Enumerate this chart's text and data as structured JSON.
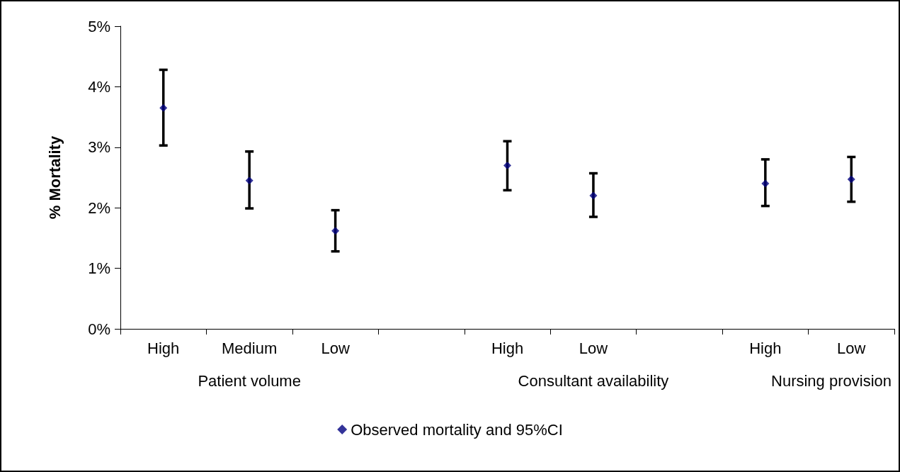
{
  "chart_data": {
    "type": "scatter",
    "ylabel": "% Mortality",
    "categories": [
      "High",
      "Medium",
      "Low",
      null,
      "High",
      "Low",
      null,
      "High",
      "Low"
    ],
    "series": [
      {
        "name": "Observed mortality and 95%CI",
        "color": "#000080",
        "values": [
          3.65,
          2.45,
          1.62,
          null,
          2.7,
          2.2,
          null,
          2.4,
          2.47
        ],
        "errors": [
          [
            3.03,
            4.28
          ],
          [
            1.99,
            2.93
          ],
          [
            1.28,
            1.96
          ],
          null,
          [
            2.29,
            3.1
          ],
          [
            1.85,
            2.57
          ],
          null,
          [
            2.03,
            2.8
          ],
          [
            2.1,
            2.84
          ]
        ]
      }
    ],
    "ylim": [
      0,
      5
    ],
    "yticks": [
      {
        "value": 0,
        "label": "0%"
      },
      {
        "value": 1,
        "label": "1%"
      },
      {
        "value": 2,
        "label": "2%"
      },
      {
        "value": 3,
        "label": "3%"
      },
      {
        "value": 4,
        "label": "4%"
      },
      {
        "value": 5,
        "label": "5%"
      }
    ],
    "annotations": [
      "Patient volume",
      "Consultant availability",
      "Nursing provision"
    ],
    "marker": "diamond",
    "grid": false,
    "legend": "bottom"
  }
}
